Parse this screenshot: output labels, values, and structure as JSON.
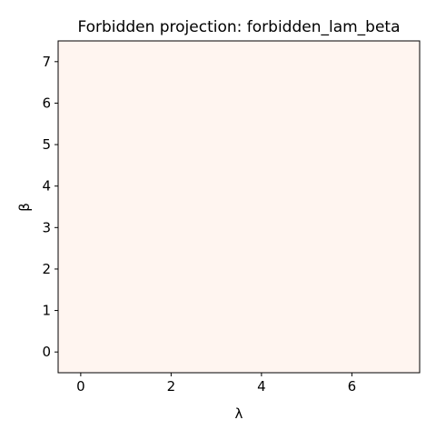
{
  "chart_data": {
    "type": "heatmap",
    "title": "Forbidden projection: forbidden_lam_beta",
    "xlabel": "λ",
    "ylabel": "β",
    "xlim": [
      -0.5,
      7.5
    ],
    "ylim": [
      -0.5,
      7.5
    ],
    "xticks": [
      0,
      2,
      4,
      6
    ],
    "yticks": [
      0,
      1,
      2,
      3,
      4,
      5,
      6,
      7
    ],
    "grid": false,
    "values_description": "all cells at the minimum of the colormap",
    "cell_color": "#fff5f0",
    "axis_color": "#000000"
  }
}
